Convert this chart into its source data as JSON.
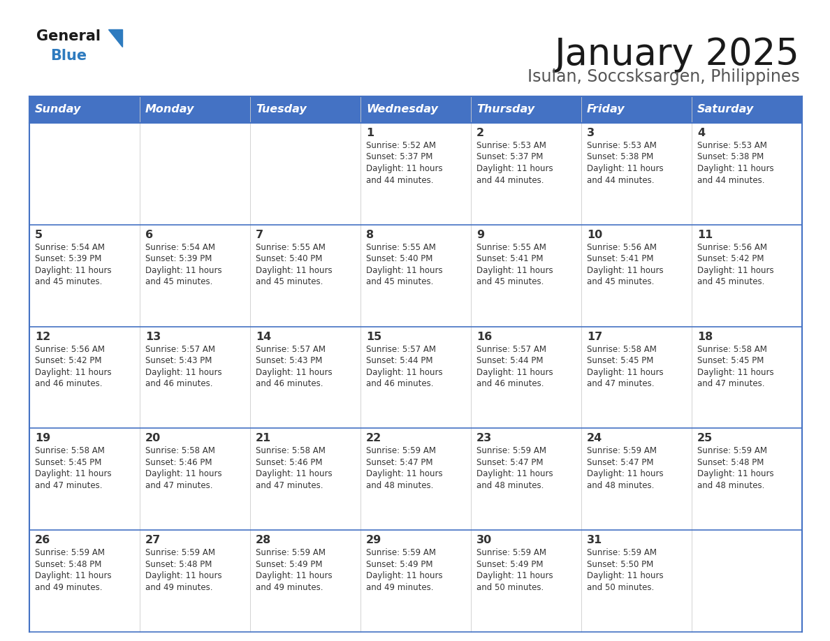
{
  "title": "January 2025",
  "subtitle": "Isulan, Soccsksargen, Philippines",
  "header_color": "#4472C4",
  "header_text_color": "#FFFFFF",
  "day_headers": [
    "Sunday",
    "Monday",
    "Tuesday",
    "Wednesday",
    "Thursday",
    "Friday",
    "Saturday"
  ],
  "background_color": "#FFFFFF",
  "border_color": "#4472C4",
  "text_color": "#333333",
  "num_cols": 7,
  "calendar_data": [
    [
      {
        "day": "",
        "sunrise": "",
        "sunset": "",
        "daylight_h": "",
        "daylight_m": ""
      },
      {
        "day": "",
        "sunrise": "",
        "sunset": "",
        "daylight_h": "",
        "daylight_m": ""
      },
      {
        "day": "",
        "sunrise": "",
        "sunset": "",
        "daylight_h": "",
        "daylight_m": ""
      },
      {
        "day": "1",
        "sunrise": "5:52 AM",
        "sunset": "5:37 PM",
        "daylight_h": "11",
        "daylight_m": "44"
      },
      {
        "day": "2",
        "sunrise": "5:53 AM",
        "sunset": "5:37 PM",
        "daylight_h": "11",
        "daylight_m": "44"
      },
      {
        "day": "3",
        "sunrise": "5:53 AM",
        "sunset": "5:38 PM",
        "daylight_h": "11",
        "daylight_m": "44"
      },
      {
        "day": "4",
        "sunrise": "5:53 AM",
        "sunset": "5:38 PM",
        "daylight_h": "11",
        "daylight_m": "44"
      }
    ],
    [
      {
        "day": "5",
        "sunrise": "5:54 AM",
        "sunset": "5:39 PM",
        "daylight_h": "11",
        "daylight_m": "45"
      },
      {
        "day": "6",
        "sunrise": "5:54 AM",
        "sunset": "5:39 PM",
        "daylight_h": "11",
        "daylight_m": "45"
      },
      {
        "day": "7",
        "sunrise": "5:55 AM",
        "sunset": "5:40 PM",
        "daylight_h": "11",
        "daylight_m": "45"
      },
      {
        "day": "8",
        "sunrise": "5:55 AM",
        "sunset": "5:40 PM",
        "daylight_h": "11",
        "daylight_m": "45"
      },
      {
        "day": "9",
        "sunrise": "5:55 AM",
        "sunset": "5:41 PM",
        "daylight_h": "11",
        "daylight_m": "45"
      },
      {
        "day": "10",
        "sunrise": "5:56 AM",
        "sunset": "5:41 PM",
        "daylight_h": "11",
        "daylight_m": "45"
      },
      {
        "day": "11",
        "sunrise": "5:56 AM",
        "sunset": "5:42 PM",
        "daylight_h": "11",
        "daylight_m": "45"
      }
    ],
    [
      {
        "day": "12",
        "sunrise": "5:56 AM",
        "sunset": "5:42 PM",
        "daylight_h": "11",
        "daylight_m": "46"
      },
      {
        "day": "13",
        "sunrise": "5:57 AM",
        "sunset": "5:43 PM",
        "daylight_h": "11",
        "daylight_m": "46"
      },
      {
        "day": "14",
        "sunrise": "5:57 AM",
        "sunset": "5:43 PM",
        "daylight_h": "11",
        "daylight_m": "46"
      },
      {
        "day": "15",
        "sunrise": "5:57 AM",
        "sunset": "5:44 PM",
        "daylight_h": "11",
        "daylight_m": "46"
      },
      {
        "day": "16",
        "sunrise": "5:57 AM",
        "sunset": "5:44 PM",
        "daylight_h": "11",
        "daylight_m": "46"
      },
      {
        "day": "17",
        "sunrise": "5:58 AM",
        "sunset": "5:45 PM",
        "daylight_h": "11",
        "daylight_m": "47"
      },
      {
        "day": "18",
        "sunrise": "5:58 AM",
        "sunset": "5:45 PM",
        "daylight_h": "11",
        "daylight_m": "47"
      }
    ],
    [
      {
        "day": "19",
        "sunrise": "5:58 AM",
        "sunset": "5:45 PM",
        "daylight_h": "11",
        "daylight_m": "47"
      },
      {
        "day": "20",
        "sunrise": "5:58 AM",
        "sunset": "5:46 PM",
        "daylight_h": "11",
        "daylight_m": "47"
      },
      {
        "day": "21",
        "sunrise": "5:58 AM",
        "sunset": "5:46 PM",
        "daylight_h": "11",
        "daylight_m": "47"
      },
      {
        "day": "22",
        "sunrise": "5:59 AM",
        "sunset": "5:47 PM",
        "daylight_h": "11",
        "daylight_m": "48"
      },
      {
        "day": "23",
        "sunrise": "5:59 AM",
        "sunset": "5:47 PM",
        "daylight_h": "11",
        "daylight_m": "48"
      },
      {
        "day": "24",
        "sunrise": "5:59 AM",
        "sunset": "5:47 PM",
        "daylight_h": "11",
        "daylight_m": "48"
      },
      {
        "day": "25",
        "sunrise": "5:59 AM",
        "sunset": "5:48 PM",
        "daylight_h": "11",
        "daylight_m": "48"
      }
    ],
    [
      {
        "day": "26",
        "sunrise": "5:59 AM",
        "sunset": "5:48 PM",
        "daylight_h": "11",
        "daylight_m": "49"
      },
      {
        "day": "27",
        "sunrise": "5:59 AM",
        "sunset": "5:48 PM",
        "daylight_h": "11",
        "daylight_m": "49"
      },
      {
        "day": "28",
        "sunrise": "5:59 AM",
        "sunset": "5:49 PM",
        "daylight_h": "11",
        "daylight_m": "49"
      },
      {
        "day": "29",
        "sunrise": "5:59 AM",
        "sunset": "5:49 PM",
        "daylight_h": "11",
        "daylight_m": "49"
      },
      {
        "day": "30",
        "sunrise": "5:59 AM",
        "sunset": "5:49 PM",
        "daylight_h": "11",
        "daylight_m": "50"
      },
      {
        "day": "31",
        "sunrise": "5:59 AM",
        "sunset": "5:50 PM",
        "daylight_h": "11",
        "daylight_m": "50"
      },
      {
        "day": "",
        "sunrise": "",
        "sunset": "",
        "daylight_h": "",
        "daylight_m": ""
      }
    ]
  ],
  "logo_text_general": "General",
  "logo_text_blue": "Blue",
  "logo_color_general": "#1a1a1a",
  "logo_color_blue": "#2e7bbf"
}
